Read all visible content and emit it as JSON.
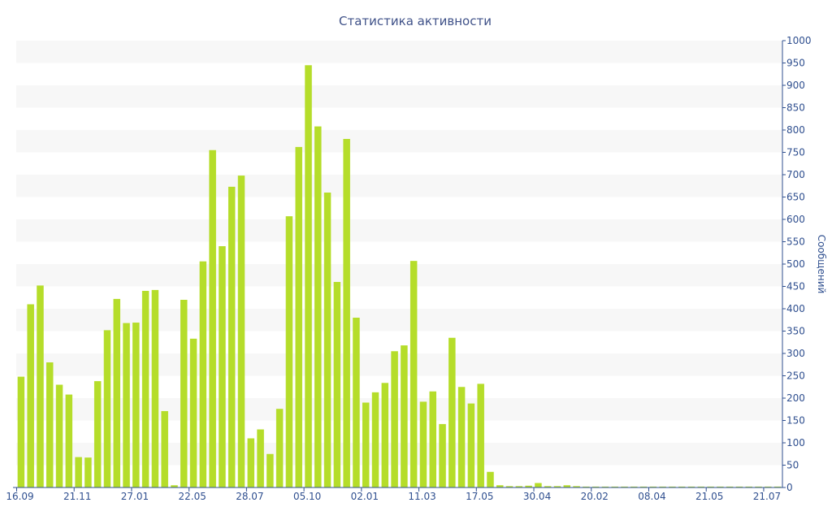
{
  "chart_data": {
    "type": "bar",
    "title": "Статистика активности",
    "xlabel": "",
    "ylabel": "Сообщений",
    "ylim": [
      0,
      1000
    ],
    "y_ticks": [
      0,
      50,
      100,
      150,
      200,
      250,
      300,
      350,
      400,
      450,
      500,
      550,
      600,
      650,
      700,
      750,
      800,
      850,
      900,
      950,
      1000
    ],
    "x_tick_labels": [
      {
        "index": 0,
        "label": "16.09"
      },
      {
        "index": 6,
        "label": "21.11"
      },
      {
        "index": 12,
        "label": "27.01"
      },
      {
        "index": 18,
        "label": "22.05"
      },
      {
        "index": 24,
        "label": "28.07"
      },
      {
        "index": 30,
        "label": "05.10"
      },
      {
        "index": 36,
        "label": "02.01"
      },
      {
        "index": 42,
        "label": "11.03"
      },
      {
        "index": 48,
        "label": "17.05"
      },
      {
        "index": 54,
        "label": "30.04"
      },
      {
        "index": 60,
        "label": "20.02"
      },
      {
        "index": 66,
        "label": "08.04"
      },
      {
        "index": 72,
        "label": "21.05"
      },
      {
        "index": 78,
        "label": "21.07"
      }
    ],
    "values": [
      248,
      410,
      452,
      280,
      230,
      208,
      68,
      67,
      238,
      352,
      422,
      368,
      369,
      440,
      442,
      171,
      5,
      420,
      333,
      506,
      755,
      540,
      673,
      698,
      110,
      130,
      75,
      176,
      607,
      762,
      945,
      808,
      660,
      460,
      780,
      380,
      190,
      213,
      234,
      305,
      318,
      507,
      192,
      215,
      142,
      335,
      225,
      188,
      232,
      35,
      5,
      3,
      3,
      4,
      10,
      3,
      3,
      5,
      3,
      2,
      2,
      2,
      2,
      2,
      2,
      2,
      2,
      2,
      2,
      2,
      2,
      2,
      2,
      2,
      2,
      2,
      2,
      2,
      2,
      2
    ],
    "colors": {
      "bar": "#b5dd2a",
      "band": "#f7f7f7",
      "axis": "#2f4f8f",
      "text": "#2f4f8f",
      "title": "#3f5188"
    },
    "grid": "alternating-bands",
    "y_axis_position": "right"
  }
}
